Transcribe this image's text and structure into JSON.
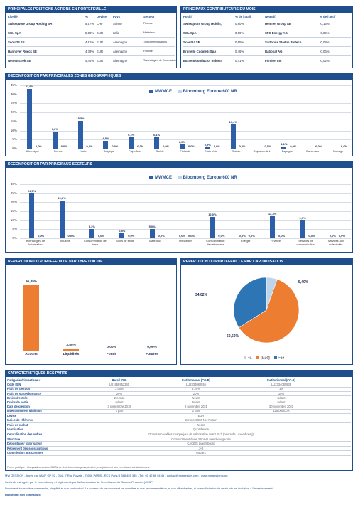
{
  "positions": {
    "title": "PRINCIPALES POSITIONS ACTIONS EN PORTEFEUILLE",
    "headers": [
      "Libellé",
      "%",
      "Devise",
      "Pays",
      "Secteur"
    ],
    "rows": [
      [
        "Swissquote Group Holding SA",
        "5,57%",
        "CHF",
        "Suisse",
        "Finance"
      ],
      [
        "SOL SpA",
        "5,08%",
        "EUR",
        "Italie",
        "Matériaux"
      ],
      [
        "Scout24 SE",
        "4,81%",
        "EUR",
        "Allemagne",
        "Télécommunications"
      ],
      [
        "Hannover Rueck SE",
        "4,79%",
        "EUR",
        "Allemagne",
        "Finance"
      ],
      [
        "Nemetschek SE",
        "4,44%",
        "EUR",
        "Allemagne",
        "Technologies de l'information"
      ]
    ]
  },
  "contributors": {
    "title": "PRINCIPAUX CONTRIBUTEURS DU MOIS",
    "headers": [
      "Positif",
      "% de l'actif",
      "Négatif",
      "% de l'actif"
    ],
    "rows": [
      [
        "Swissquote Group Holdin,",
        "0,90%",
        "Hemnet Group AB",
        "-0,13%"
      ],
      [
        "SOL SpA",
        "0,69%",
        "SFC Energy AG",
        "-0,09%"
      ],
      [
        "Scout24 SE",
        "0,65%",
        "Sartorius Stedim Biotech",
        "-0,08%"
      ],
      [
        "Brunello Cucinelli SpA",
        "0,46%",
        "Rational AG",
        "-0,06%"
      ],
      [
        "BE Semiconductor Industr",
        "0,41%",
        "Fortinet Inc",
        "-0,02%"
      ]
    ]
  },
  "geo": {
    "title": "DECOMPOSITION PAR PRINCIPALES ZONES GEOGRAPHIQUES",
    "legend": [
      "MWMCE",
      "Bloomberg Europe 600 NR"
    ],
    "yticks": [
      "35%",
      "30%",
      "25%",
      "20%",
      "15%",
      "10%",
      "5%",
      "0%"
    ]
  },
  "sect": {
    "title": "DECOMPOSITION PAR PRINCIPAUX SECTEURS",
    "legend": [
      "MWMCE",
      "Bloomberg Europe 600 NR"
    ],
    "yticks": [
      "30%",
      "25%",
      "20%",
      "15%",
      "10%",
      "5%",
      "0%"
    ]
  },
  "asset": {
    "title": "REPARTITION DU PORTEFEUILLE PAR TYPE D'ACTIF"
  },
  "cap": {
    "title": "REPARTITION DU PORTEFEUILLE PAR CAPITALISATION",
    "legend": [
      "<1",
      "[1;10]",
      ">10"
    ]
  },
  "chart_data": [
    {
      "type": "bar",
      "title": "DECOMPOSITION PAR PRINCIPALES ZONES GEOGRAPHIQUES",
      "ylim": [
        0,
        35
      ],
      "categories": [
        "Allemagne",
        "France",
        "Italie",
        "Belgique",
        "Pays-Bas",
        "Suède",
        "Finlande",
        "Etats Unis",
        "Suisse",
        "Royaume-Uni",
        "Espagne",
        "Danemark",
        "Norvège"
      ],
      "series": [
        {
          "name": "MWMCE",
          "values": [
            32.9,
            9.6,
            15.5,
            4.5,
            6.1,
            6.1,
            2.5,
            0.9,
            13.4,
            0,
            1.1,
            0,
            0
          ]
        },
        {
          "name": "Bloomberg Europe 600 NR",
          "values": [
            0,
            0,
            0,
            0,
            0,
            0,
            0,
            0,
            0,
            0,
            0,
            0,
            0
          ]
        }
      ],
      "labels_mwmce": [
        "32,9%",
        "9,6%",
        "15,5%",
        "4,5%",
        "6,1%",
        "6,1%",
        "2,5%",
        "0,9%",
        "13,4%",
        "",
        "1,1%",
        "",
        ""
      ],
      "labels_bench": [
        "0,0%",
        "0,0%",
        "0,0%",
        "0,0%",
        "0,0%",
        "0,0%",
        "0,0%",
        "0,0%",
        "0,0%",
        "0,0%",
        "0,0%",
        "0,0%",
        "0,0%"
      ]
    },
    {
      "type": "bar",
      "title": "DECOMPOSITION PAR PRINCIPAUX SECTEURS",
      "ylim": [
        0,
        30
      ],
      "categories": [
        "Technologies de l'information",
        "Industrie",
        "Consommation de base",
        "Soins de santé",
        "Matériaux",
        "Immobilier",
        "Consommation discrétionnaire",
        "Energie",
        "Finance",
        "Services de communication",
        "Services aux collectivités"
      ],
      "series": [
        {
          "name": "MWMCE",
          "values": [
            24.7,
            20.8,
            5.3,
            2.8,
            5.0,
            0,
            12.0,
            0,
            12.4,
            9.9,
            0
          ]
        },
        {
          "name": "Bloomberg Europe 600 NR",
          "values": [
            0,
            0,
            0,
            0,
            0,
            0,
            0,
            0,
            0,
            0,
            0
          ]
        }
      ],
      "labels_mwmce": [
        "24,7%",
        "20,8%",
        "5,3%",
        "2,8%",
        "5,0%",
        "0,0%",
        "12,0%",
        "0,0%",
        "12,4%",
        "9,9%",
        "0,0%"
      ],
      "labels_bench": [
        "0,0%",
        "0,0%",
        "0,0%",
        "0,0%",
        "0,0%",
        "0,0%",
        "0,0%",
        "0,0%",
        "0,0%",
        "0,0%",
        "0,0%"
      ]
    },
    {
      "type": "bar",
      "title": "REPARTITION DU PORTEFEUILLE PAR TYPE D'ACTIF",
      "categories": [
        "Actions",
        "Liquidités",
        "Fonds",
        "Futures"
      ],
      "values": [
        96.45,
        3.55,
        0,
        0
      ],
      "labels": [
        "96,45%",
        "3,55%",
        "0,00%",
        "0,00%"
      ]
    },
    {
      "type": "pie",
      "title": "REPARTITION DU PORTEFEUILLE PAR CAPITALISATION",
      "categories": [
        "<1",
        "[1;10]",
        ">10"
      ],
      "values": [
        5.4,
        60.56,
        34.02
      ],
      "labels": [
        "5,40%",
        "60,56%",
        "34,02%"
      ],
      "colors": [
        "#bcd4ec",
        "#ed7d31",
        "#2e75b6"
      ]
    }
  ],
  "characteristics": {
    "title": "CARACTERISTIQUES DES PARTS",
    "rows": [
      [
        "Catégorie d'investisseur",
        "Retail (DP)",
        "Institutionnel (CG-P)",
        "Institutionnel (CG-P)"
      ],
      [
        "Code ISIN",
        "LU1858952340",
        "LU2334080855",
        "LU2334080939"
      ],
      [
        "Frais de Gestion",
        "2,00%",
        "2,20%",
        "1%"
      ],
      [
        "Frais de surperformance",
        "20%",
        "20%",
        "10%"
      ],
      [
        "Droits d'entrée",
        "2% max",
        "Néant",
        "Néant"
      ],
      [
        "Droits de sortie",
        "Néant",
        "Néant",
        "Néant"
      ],
      [
        "Date de création",
        "3 septembre 2018",
        "2 novembre 2021",
        "30 novembre 2021"
      ],
      [
        "Investissement Minimum",
        "1 part",
        "1 part",
        "125 000EUR"
      ]
    ],
    "shared": [
      [
        "Devise",
        "EUR"
      ],
      [
        "Indice de référence",
        "Euronext 600 Net Return"
      ],
      [
        "Frais de rachat",
        "Néant"
      ],
      [
        "Valorisation",
        "Quotidienne"
      ],
      [
        "Centralisation des ordres",
        "Ordres recevables chaque jour de valorisation avant 15 h (heure de Luxembourg)"
      ],
      [
        "Structure",
        "Compartiment d'une SICAV Luxembourgeoise"
      ],
      [
        "Dépositaire / Valorisateur",
        "CACEIS Luxembourg"
      ],
      [
        "Règlement des souscriptions",
        "J+2"
      ],
      [
        "Commission aux comptes",
        "Mazars"
      ]
    ],
    "note": "Forme juridique : Compartiment d'une SICAV de droit luxembourgeois, destiné principalement aux investisseurs institutionnels"
  },
  "footer": {
    "line1": "MW GESTION - Agrée par l'AMF GP 92 - 054 - 7 Rue Royale - 75008 PARIS - RCS Paris B 388 455 335 - Tel : 01 42 86 54 45 - contact@mwgestion.com - www.mwgestion.com",
    "line2": "Ce fonds est agréé par le Luxembourg et réglementé par la Commission de Surveillance du Secteur Financier (CSSF)",
    "line3": "Document à caractère commercial, simplifié et non contractuel. Le contenu de ce document ne constitue ni une recommandation, ni une offre d'achat, ni une sollicitation de vente, ni une incitation à l'investissement.",
    "line4": "Document non contractuel"
  }
}
